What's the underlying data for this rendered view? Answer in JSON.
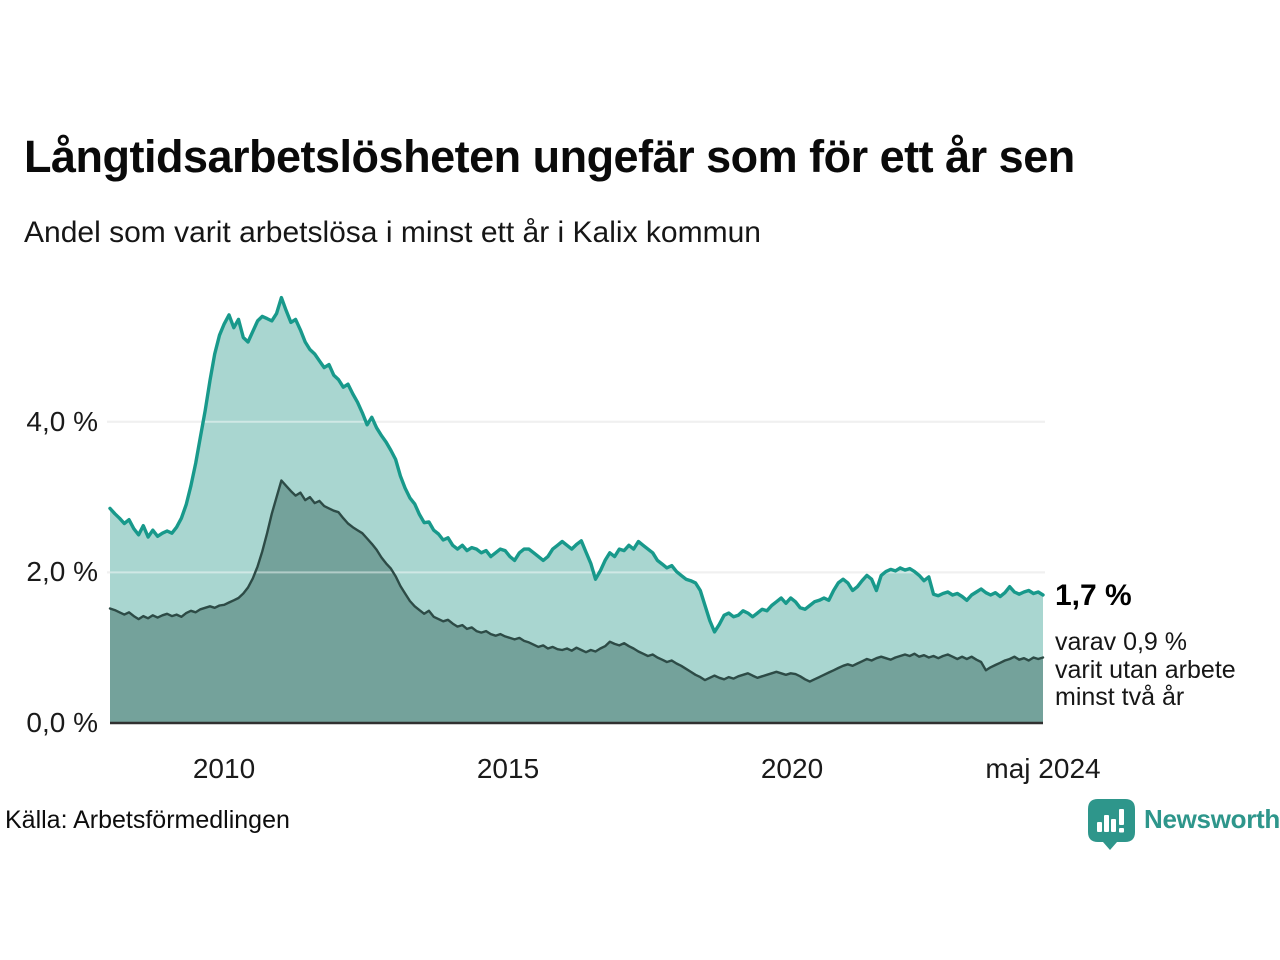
{
  "header": {
    "title": "Långtidsarbetslösheten ungefär som för ett år sen",
    "subtitle": "Andel som varit arbetslösa i minst ett år i Kalix kommun"
  },
  "annotation": {
    "latest_value": "1,7 %",
    "note_lines": [
      "varav 0,9 %",
      "varit utan arbete",
      "minst två år"
    ]
  },
  "footer": {
    "source": "Källa: Arbetsförmedlingen",
    "brand": "Newsworthy"
  },
  "colors": {
    "line_one_year": "#18998B",
    "fill_one_year": "#A9D6D0",
    "line_two_years": "#2D4B46",
    "fill_two_years": "#74A29B",
    "gridline": "#E3E3E3",
    "gridline_overlay": "rgba(255,255,255,0.45)",
    "axis_baseline": "#303030",
    "brand_teal": "#2E968B"
  },
  "chart_data": {
    "type": "area",
    "title": "Långtidsarbetslösheten ungefär som för ett år sen",
    "subtitle": "Andel som varit arbetslösa i minst ett år i Kalix kommun",
    "unit": "%",
    "x_start_month": "2008-01",
    "x_end_month": "2024-05",
    "x_start": 2008.0,
    "x_end": 2024.4167,
    "ylim": [
      0,
      5.9
    ],
    "grid": "horizontal",
    "y_ticks": [
      {
        "label": "0,0 %",
        "v": 0
      },
      {
        "label": "2,0 %",
        "v": 2
      },
      {
        "label": "4,0 %",
        "v": 4
      }
    ],
    "x_ticks": [
      {
        "label": "2010",
        "t": 2010
      },
      {
        "label": "2015",
        "t": 2015
      },
      {
        "label": "2020",
        "t": 2020
      },
      {
        "label": "maj 2024",
        "t": 2024.4167
      }
    ],
    "series": [
      {
        "name": "Arbetslösa minst ett år",
        "latest_label": "1,7 %",
        "values": [
          2.85,
          2.78,
          2.72,
          2.65,
          2.7,
          2.58,
          2.5,
          2.62,
          2.47,
          2.56,
          2.48,
          2.52,
          2.55,
          2.52,
          2.6,
          2.72,
          2.9,
          3.15,
          3.45,
          3.8,
          4.15,
          4.55,
          4.9,
          5.15,
          5.3,
          5.42,
          5.25,
          5.36,
          5.12,
          5.06,
          5.2,
          5.34,
          5.4,
          5.37,
          5.34,
          5.44,
          5.65,
          5.48,
          5.32,
          5.36,
          5.22,
          5.06,
          4.96,
          4.9,
          4.81,
          4.72,
          4.76,
          4.62,
          4.56,
          4.46,
          4.5,
          4.37,
          4.26,
          4.12,
          3.96,
          4.06,
          3.92,
          3.82,
          3.73,
          3.62,
          3.5,
          3.28,
          3.12,
          2.99,
          2.91,
          2.77,
          2.66,
          2.67,
          2.56,
          2.51,
          2.43,
          2.46,
          2.36,
          2.31,
          2.36,
          2.29,
          2.33,
          2.31,
          2.26,
          2.29,
          2.21,
          2.26,
          2.31,
          2.29,
          2.21,
          2.16,
          2.26,
          2.31,
          2.31,
          2.26,
          2.21,
          2.16,
          2.21,
          2.31,
          2.36,
          2.41,
          2.36,
          2.31,
          2.37,
          2.42,
          2.27,
          2.12,
          1.91,
          2.02,
          2.16,
          2.26,
          2.21,
          2.31,
          2.29,
          2.36,
          2.31,
          2.41,
          2.36,
          2.31,
          2.26,
          2.16,
          2.11,
          2.06,
          2.09,
          2.01,
          1.96,
          1.91,
          1.89,
          1.86,
          1.76,
          1.56,
          1.36,
          1.21,
          1.31,
          1.43,
          1.46,
          1.41,
          1.43,
          1.49,
          1.46,
          1.41,
          1.46,
          1.51,
          1.49,
          1.56,
          1.61,
          1.66,
          1.59,
          1.66,
          1.61,
          1.53,
          1.51,
          1.56,
          1.61,
          1.63,
          1.66,
          1.63,
          1.76,
          1.86,
          1.91,
          1.86,
          1.76,
          1.81,
          1.89,
          1.96,
          1.91,
          1.76,
          1.96,
          2.01,
          2.04,
          2.02,
          2.06,
          2.03,
          2.05,
          2.01,
          1.96,
          1.89,
          1.94,
          1.71,
          1.69,
          1.72,
          1.74,
          1.7,
          1.72,
          1.68,
          1.63,
          1.7,
          1.74,
          1.78,
          1.73,
          1.7,
          1.73,
          1.68,
          1.73,
          1.81,
          1.74,
          1.71,
          1.74,
          1.76,
          1.72,
          1.74,
          1.7
        ]
      },
      {
        "name": "Utan arbete minst två år",
        "latest_label": "0,9 %",
        "values": [
          1.52,
          1.5,
          1.47,
          1.44,
          1.47,
          1.42,
          1.38,
          1.42,
          1.39,
          1.43,
          1.4,
          1.43,
          1.45,
          1.42,
          1.44,
          1.41,
          1.46,
          1.49,
          1.47,
          1.51,
          1.53,
          1.55,
          1.53,
          1.56,
          1.57,
          1.6,
          1.63,
          1.66,
          1.72,
          1.8,
          1.92,
          2.08,
          2.28,
          2.52,
          2.78,
          3.0,
          3.22,
          3.15,
          3.08,
          3.02,
          3.06,
          2.96,
          3.0,
          2.92,
          2.95,
          2.88,
          2.85,
          2.82,
          2.8,
          2.72,
          2.65,
          2.6,
          2.56,
          2.52,
          2.45,
          2.38,
          2.3,
          2.2,
          2.12,
          2.05,
          1.95,
          1.82,
          1.72,
          1.62,
          1.55,
          1.5,
          1.45,
          1.49,
          1.41,
          1.38,
          1.35,
          1.37,
          1.32,
          1.28,
          1.3,
          1.25,
          1.27,
          1.22,
          1.2,
          1.22,
          1.18,
          1.16,
          1.18,
          1.15,
          1.13,
          1.11,
          1.13,
          1.09,
          1.07,
          1.04,
          1.01,
          1.03,
          0.99,
          1.01,
          0.98,
          0.97,
          0.99,
          0.96,
          1.0,
          0.97,
          0.94,
          0.97,
          0.95,
          0.99,
          1.02,
          1.08,
          1.05,
          1.03,
          1.06,
          1.02,
          0.99,
          0.95,
          0.92,
          0.89,
          0.91,
          0.87,
          0.84,
          0.81,
          0.83,
          0.79,
          0.76,
          0.72,
          0.68,
          0.64,
          0.61,
          0.57,
          0.6,
          0.63,
          0.6,
          0.58,
          0.61,
          0.59,
          0.62,
          0.64,
          0.66,
          0.63,
          0.6,
          0.62,
          0.64,
          0.66,
          0.68,
          0.66,
          0.64,
          0.66,
          0.65,
          0.62,
          0.58,
          0.55,
          0.58,
          0.61,
          0.64,
          0.67,
          0.7,
          0.73,
          0.76,
          0.78,
          0.76,
          0.79,
          0.82,
          0.85,
          0.83,
          0.86,
          0.88,
          0.86,
          0.84,
          0.87,
          0.89,
          0.91,
          0.89,
          0.92,
          0.88,
          0.9,
          0.87,
          0.89,
          0.86,
          0.89,
          0.91,
          0.88,
          0.85,
          0.88,
          0.85,
          0.88,
          0.84,
          0.81,
          0.7,
          0.74,
          0.77,
          0.8,
          0.83,
          0.85,
          0.88,
          0.84,
          0.86,
          0.83,
          0.87,
          0.85,
          0.87
        ]
      }
    ]
  }
}
